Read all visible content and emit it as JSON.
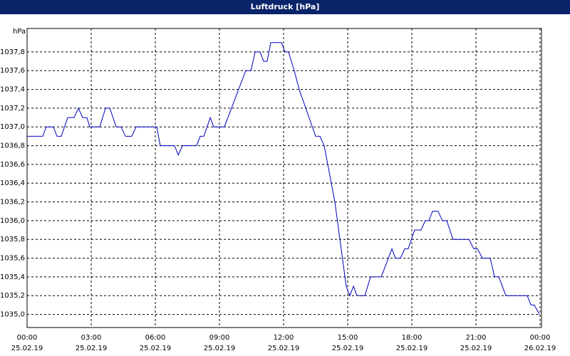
{
  "chart_data": {
    "type": "line",
    "title": "Luftdruck [hPa]",
    "y_unit": "hPa",
    "x": [
      0,
      0.73,
      0.9,
      1.23,
      1.4,
      1.6,
      1.9,
      2.2,
      2.4,
      2.6,
      2.8,
      2.93,
      3.4,
      3.67,
      3.87,
      4.17,
      4.4,
      4.6,
      4.9,
      5.1,
      6.07,
      6.23,
      6.9,
      7.07,
      7.27,
      7.93,
      8.1,
      8.27,
      8.57,
      8.73,
      9.23,
      10.23,
      10.47,
      10.67,
      10.9,
      11.07,
      11.23,
      11.4,
      11.9,
      12.07,
      12.23,
      12.5,
      12.73,
      13.5,
      13.7,
      13.9,
      14.4,
      14.93,
      15.1,
      15.27,
      15.43,
      15.8,
      16.07,
      16.57,
      17.07,
      17.23,
      17.47,
      17.67,
      17.83,
      18.13,
      18.43,
      18.63,
      18.8,
      18.97,
      19.23,
      19.43,
      19.63,
      19.93,
      20.67,
      20.9,
      21.07,
      21.3,
      21.67,
      21.87,
      22.07,
      22.4,
      23.4,
      23.57,
      23.73,
      23.97
    ],
    "series": [
      {
        "name": "Luftdruck",
        "color": "#0000c0",
        "values": [
          1036.9,
          1036.9,
          1037.0,
          1037.0,
          1036.9,
          1036.9,
          1037.1,
          1037.1,
          1037.2,
          1037.1,
          1037.1,
          1037.0,
          1037.0,
          1037.2,
          1037.2,
          1037.0,
          1037.0,
          1036.9,
          1036.9,
          1037.0,
          1037.0,
          1036.8,
          1036.8,
          1036.7,
          1036.8,
          1036.8,
          1036.9,
          1036.9,
          1037.1,
          1037.0,
          1037.0,
          1037.6,
          1037.6,
          1037.8,
          1037.8,
          1037.7,
          1037.7,
          1037.9,
          1037.9,
          1037.8,
          1037.8,
          1037.6,
          1037.4,
          1036.9,
          1036.9,
          1036.8,
          1036.2,
          1035.3,
          1035.2,
          1035.3,
          1035.2,
          1035.2,
          1035.4,
          1035.4,
          1035.7,
          1035.6,
          1035.6,
          1035.7,
          1035.7,
          1035.9,
          1035.9,
          1036.0,
          1036.0,
          1036.1,
          1036.1,
          1036.0,
          1036.0,
          1035.8,
          1035.8,
          1035.7,
          1035.7,
          1035.6,
          1035.6,
          1035.4,
          1035.4,
          1035.2,
          1035.2,
          1035.1,
          1035.1,
          1035.0
        ]
      }
    ],
    "xlim": [
      0,
      24
    ],
    "xticks": [
      {
        "value": 0,
        "label": "00:00",
        "date": "25.02.19"
      },
      {
        "value": 3,
        "label": "03:00",
        "date": "25.02.19"
      },
      {
        "value": 6,
        "label": "06:00",
        "date": "25.02.19"
      },
      {
        "value": 9,
        "label": "09:00",
        "date": "25.02.19"
      },
      {
        "value": 12,
        "label": "12:00",
        "date": "25.02.19"
      },
      {
        "value": 15,
        "label": "15:00",
        "date": "25.02.19"
      },
      {
        "value": 18,
        "label": "18:00",
        "date": "25.02.19"
      },
      {
        "value": 21,
        "label": "21:00",
        "date": "25.02.19"
      },
      {
        "value": 24,
        "label": "00:00",
        "date": "26.02.19"
      }
    ],
    "ylim": [
      1034.86,
      1038.05
    ],
    "yticks": [
      {
        "value": 1035.0,
        "label": "1035,0"
      },
      {
        "value": 1035.2,
        "label": "1035,2"
      },
      {
        "value": 1035.4,
        "label": "1035,4"
      },
      {
        "value": 1035.6,
        "label": "1035,6"
      },
      {
        "value": 1035.8,
        "label": "1035,8"
      },
      {
        "value": 1036.0,
        "label": "1036,0"
      },
      {
        "value": 1036.2,
        "label": "1036,2"
      },
      {
        "value": 1036.4,
        "label": "1036,4"
      },
      {
        "value": 1036.6,
        "label": "1036,6"
      },
      {
        "value": 1036.8,
        "label": "1036,8"
      },
      {
        "value": 1037.0,
        "label": "1037,0"
      },
      {
        "value": 1037.2,
        "label": "1037,2"
      },
      {
        "value": 1037.4,
        "label": "1037,4"
      },
      {
        "value": 1037.6,
        "label": "1037,6"
      },
      {
        "value": 1037.8,
        "label": "1037,8"
      }
    ],
    "grid": true
  }
}
